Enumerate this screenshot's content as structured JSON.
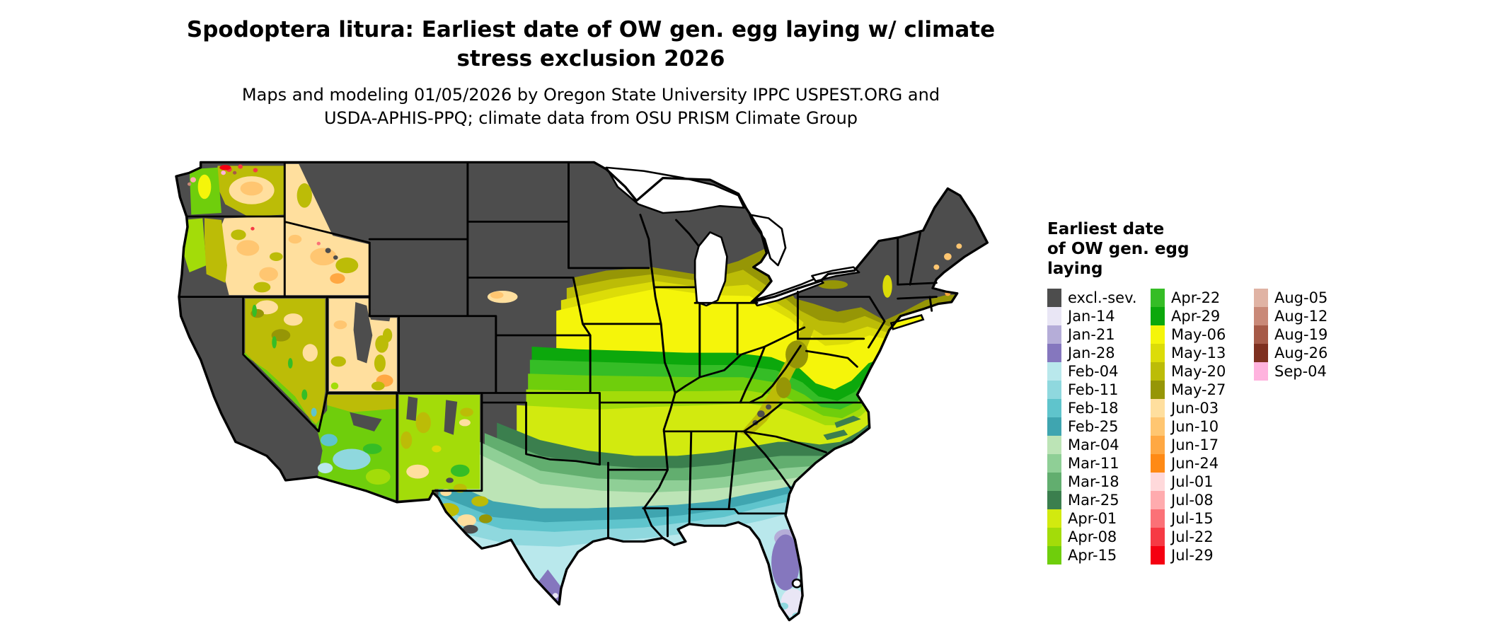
{
  "header": {
    "title_line1": "Spodoptera litura: Earliest date of OW gen. egg laying w/ climate",
    "title_line2": "stress exclusion 2026",
    "subtitle_line1": "Maps and modeling 01/05/2026 by Oregon State University IPPC USPEST.ORG and",
    "subtitle_line2": "USDA-APHIS-PPQ; climate data from OSU PRISM Climate Group"
  },
  "legend": {
    "title_line1": "Earliest date",
    "title_line2": "of OW gen. egg",
    "title_line3": "laying",
    "columns": [
      [
        {
          "label": "excl.-sev.",
          "color": "#4D4D4D"
        },
        {
          "label": "Jan-14",
          "color": "#E9E6F5"
        },
        {
          "label": "Jan-21",
          "color": "#B5ADD8"
        },
        {
          "label": "Jan-28",
          "color": "#8577BE"
        },
        {
          "label": "Feb-04",
          "color": "#B9E8EC"
        },
        {
          "label": "Feb-11",
          "color": "#8FD8DE"
        },
        {
          "label": "Feb-18",
          "color": "#5FC4CC"
        },
        {
          "label": "Feb-25",
          "color": "#3FA5B0"
        },
        {
          "label": "Mar-04",
          "color": "#BCE4B6"
        },
        {
          "label": "Mar-11",
          "color": "#8FCF96"
        },
        {
          "label": "Mar-18",
          "color": "#62AE6F"
        },
        {
          "label": "Mar-25",
          "color": "#3B7F4E"
        },
        {
          "label": "Apr-01",
          "color": "#D2EA0F"
        },
        {
          "label": "Apr-08",
          "color": "#A3DC09"
        },
        {
          "label": "Apr-15",
          "color": "#6FCE0C"
        }
      ],
      [
        {
          "label": "Apr-22",
          "color": "#35BD26"
        },
        {
          "label": "Apr-29",
          "color": "#0CA80C"
        },
        {
          "label": "May-06",
          "color": "#F5F50A"
        },
        {
          "label": "May-13",
          "color": "#DCDC08"
        },
        {
          "label": "May-20",
          "color": "#BCBC07"
        },
        {
          "label": "May-27",
          "color": "#969606"
        },
        {
          "label": "Jun-03",
          "color": "#FFDF9E"
        },
        {
          "label": "Jun-10",
          "color": "#FFC671"
        },
        {
          "label": "Jun-17",
          "color": "#FFA843"
        },
        {
          "label": "Jun-24",
          "color": "#FF8A15"
        },
        {
          "label": "Jul-01",
          "color": "#FFD9DB"
        },
        {
          "label": "Jul-08",
          "color": "#FFABAE"
        },
        {
          "label": "Jul-15",
          "color": "#FB7177"
        },
        {
          "label": "Jul-22",
          "color": "#F63A44"
        },
        {
          "label": "Jul-29",
          "color": "#F50011"
        }
      ],
      [
        {
          "label": "Aug-05",
          "color": "#E0B3A4"
        },
        {
          "label": "Aug-12",
          "color": "#C98978"
        },
        {
          "label": "Aug-19",
          "color": "#A65A48"
        },
        {
          "label": "Aug-26",
          "color": "#7E3020"
        },
        {
          "label": "Sep-04",
          "color": "#FFB3DE"
        }
      ]
    ]
  },
  "map": {
    "description": "Continental US choropleth of earliest date of overwintering generation egg laying; dark gray areas excluded by severe climate stress",
    "water_color": "#ffffff",
    "outline_color": "#000000",
    "excluded_color": "#4D4D4D"
  }
}
